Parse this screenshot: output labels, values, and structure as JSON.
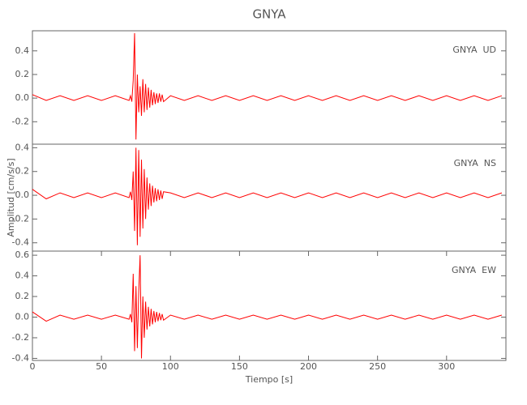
{
  "chart_data": [
    {
      "type": "line",
      "title": "GNYA",
      "label": "GNYA  UD",
      "x": [
        0,
        10,
        20,
        30,
        40,
        50,
        60,
        70,
        71,
        72,
        73,
        74,
        75,
        76,
        77,
        78,
        79,
        80,
        81,
        82,
        83,
        84,
        85,
        86,
        87,
        88,
        89,
        90,
        91,
        92,
        93,
        94,
        95,
        100,
        110,
        120,
        130,
        140,
        150,
        160,
        170,
        180,
        190,
        200,
        210,
        220,
        230,
        240,
        250,
        260,
        270,
        280,
        290,
        300,
        310,
        320,
        330,
        340
      ],
      "series": [
        {
          "color": "#ff0000",
          "values": [
            0.03,
            -0.02,
            0.02,
            -0.02,
            0.02,
            -0.02,
            0.02,
            -0.02,
            0.02,
            -0.03,
            0.15,
            0.55,
            -0.35,
            0.2,
            -0.12,
            0.1,
            -0.15,
            0.16,
            -0.12,
            0.12,
            -0.1,
            0.09,
            -0.08,
            0.07,
            -0.06,
            0.05,
            -0.05,
            0.04,
            -0.04,
            0.04,
            -0.03,
            0.03,
            -0.03,
            0.02,
            -0.02,
            0.02,
            -0.02,
            0.02,
            -0.02,
            0.02,
            -0.02,
            0.02,
            -0.02,
            0.02,
            -0.02,
            0.02,
            -0.02,
            0.02,
            -0.02,
            0.02,
            -0.02,
            0.02,
            -0.02,
            0.02,
            -0.02,
            0.02,
            -0.02,
            0.02
          ]
        }
      ],
      "xlim": [
        0,
        343
      ],
      "ylim": [
        -0.39,
        0.57
      ],
      "yticks": [
        -0.2,
        {
          "value": 0,
          "label": "0.0"
        },
        0.2,
        0.4
      ]
    },
    {
      "type": "line",
      "label": "GNYA  NS",
      "ylabel": "Amplitud [cm/s/s]",
      "x": [
        0,
        10,
        20,
        30,
        40,
        50,
        60,
        70,
        71,
        72,
        73,
        74,
        75,
        76,
        77,
        78,
        79,
        80,
        81,
        82,
        83,
        84,
        85,
        86,
        87,
        88,
        89,
        90,
        91,
        92,
        93,
        94,
        95,
        100,
        110,
        120,
        130,
        140,
        150,
        160,
        170,
        180,
        190,
        200,
        210,
        220,
        230,
        240,
        250,
        260,
        270,
        280,
        290,
        300,
        310,
        320,
        330,
        340
      ],
      "series": [
        {
          "color": "#ff0000",
          "values": [
            0.05,
            -0.03,
            0.02,
            -0.02,
            0.02,
            -0.02,
            0.02,
            -0.02,
            0.03,
            -0.04,
            0.2,
            -0.3,
            0.4,
            -0.42,
            0.38,
            -0.35,
            0.3,
            -0.28,
            0.22,
            -0.2,
            0.15,
            -0.12,
            0.1,
            -0.09,
            0.08,
            -0.06,
            0.06,
            -0.05,
            0.05,
            -0.04,
            0.04,
            -0.03,
            0.03,
            0.02,
            -0.02,
            0.02,
            -0.02,
            0.02,
            -0.02,
            0.02,
            -0.02,
            0.02,
            -0.02,
            0.02,
            -0.02,
            0.02,
            -0.02,
            0.02,
            -0.02,
            0.02,
            -0.02,
            0.02,
            -0.02,
            0.02,
            -0.02,
            0.02,
            -0.02,
            0.02
          ]
        }
      ],
      "xlim": [
        0,
        343
      ],
      "ylim": [
        -0.47,
        0.43
      ],
      "yticks": [
        -0.4,
        -0.2,
        {
          "value": 0,
          "label": "0.0"
        },
        0.2,
        0.4
      ]
    },
    {
      "type": "line",
      "label": "GNYA  EW",
      "xlabel": "Tiempo [s]",
      "x": [
        0,
        10,
        20,
        30,
        40,
        50,
        60,
        70,
        71,
        72,
        73,
        74,
        75,
        76,
        77,
        78,
        79,
        80,
        81,
        82,
        83,
        84,
        85,
        86,
        87,
        88,
        89,
        90,
        91,
        92,
        93,
        94,
        95,
        100,
        110,
        120,
        130,
        140,
        150,
        160,
        170,
        180,
        190,
        200,
        210,
        220,
        230,
        240,
        250,
        260,
        270,
        280,
        290,
        300,
        310,
        320,
        330,
        340
      ],
      "series": [
        {
          "color": "#ff0000",
          "values": [
            0.05,
            -0.04,
            0.02,
            -0.02,
            0.02,
            -0.02,
            0.02,
            -0.02,
            0.03,
            -0.05,
            0.42,
            -0.33,
            0.3,
            -0.3,
            0.25,
            0.6,
            -0.4,
            0.2,
            -0.2,
            0.15,
            -0.12,
            0.1,
            -0.09,
            0.08,
            -0.07,
            0.06,
            -0.05,
            0.05,
            -0.04,
            0.04,
            -0.03,
            0.03,
            -0.03,
            0.02,
            -0.02,
            0.02,
            -0.02,
            0.02,
            -0.02,
            0.02,
            -0.02,
            0.02,
            -0.02,
            0.02,
            -0.02,
            0.02,
            -0.02,
            0.02,
            -0.02,
            0.02,
            -0.02,
            0.02,
            -0.02,
            0.02,
            -0.02,
            0.02,
            -0.02,
            0.02
          ]
        }
      ],
      "xlim": [
        0,
        343
      ],
      "ylim": [
        -0.42,
        0.64
      ],
      "yticks": [
        -0.4,
        -0.2,
        {
          "value": 0,
          "label": "0.0"
        },
        0.2,
        0.4,
        0.6
      ],
      "xticks": [
        0,
        50,
        100,
        150,
        200,
        250,
        300
      ]
    }
  ]
}
